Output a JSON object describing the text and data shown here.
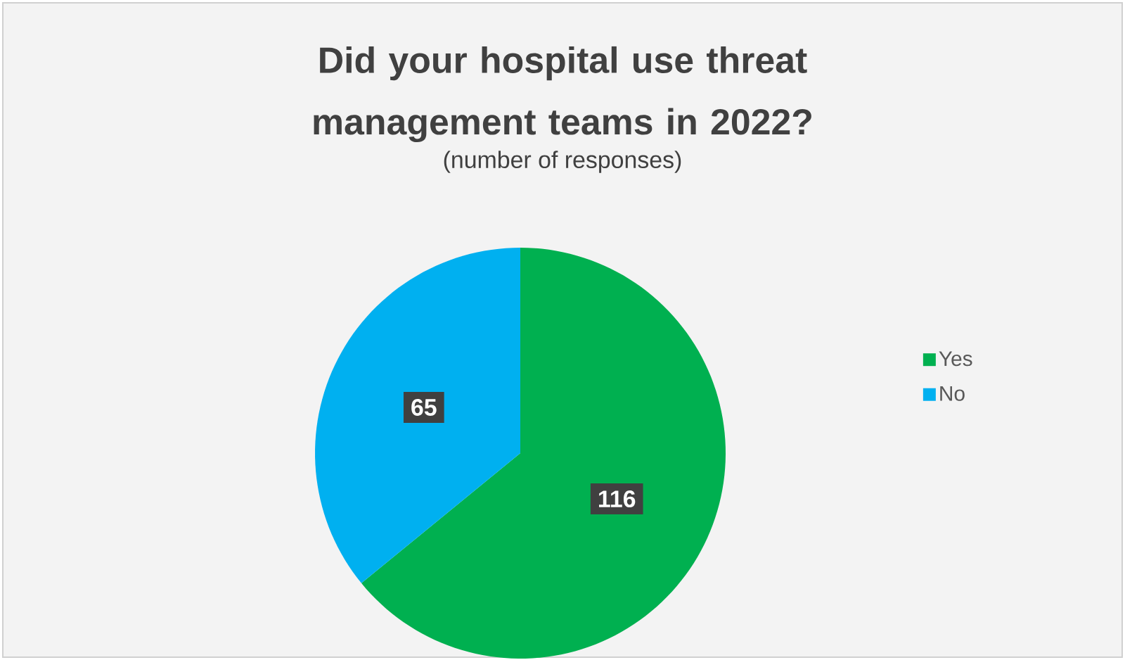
{
  "chart_data": {
    "type": "pie",
    "title": "Did your hospital use threat management teams in 2022?",
    "subtitle": "(number of responses)",
    "categories": [
      "Yes",
      "No"
    ],
    "values": [
      116,
      65
    ],
    "colors": [
      "#00b050",
      "#00b0f0"
    ],
    "data_labels": true,
    "legend": "right"
  }
}
